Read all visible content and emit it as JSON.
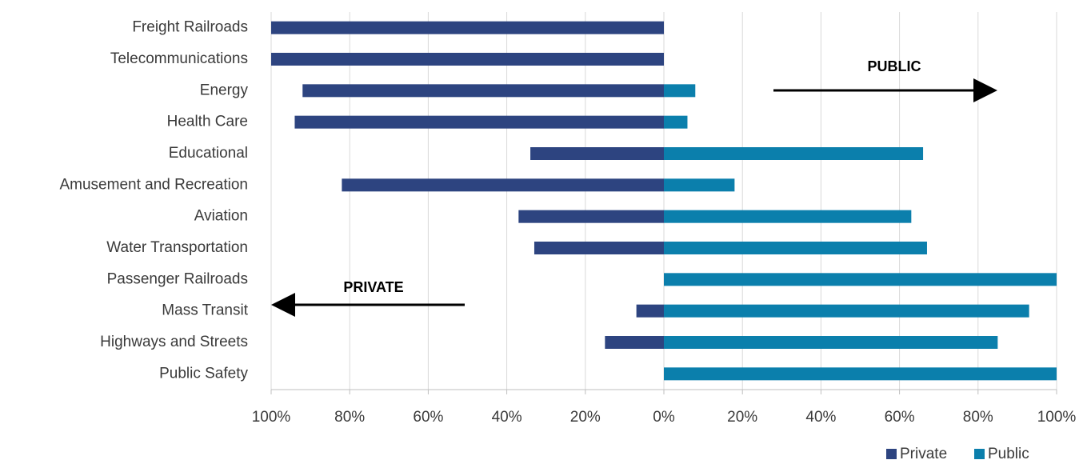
{
  "chart_data": {
    "type": "diverging-bar",
    "categories": [
      "Freight Railroads",
      "Telecommunications",
      "Energy",
      "Health Care",
      "Educational",
      "Amusement and Recreation",
      "Aviation",
      "Water Transportation",
      "Passenger Railroads",
      "Mass Transit",
      "Highways and Streets",
      "Public Safety"
    ],
    "series": [
      {
        "name": "Private",
        "color": "#2d4480",
        "values": [
          -100,
          -100,
          -92,
          -94,
          -34,
          -82,
          -37,
          -33,
          0,
          -7,
          -15,
          0
        ]
      },
      {
        "name": "Public",
        "color": "#0b7fac",
        "values": [
          0,
          0,
          8,
          6,
          66,
          18,
          63,
          67,
          100,
          93,
          85,
          100
        ]
      }
    ],
    "xlim": [
      -100,
      100
    ],
    "xticks": [
      {
        "value": -100,
        "label": "100%"
      },
      {
        "value": -80,
        "label": "80%"
      },
      {
        "value": -60,
        "label": "60%"
      },
      {
        "value": -40,
        "label": "40%"
      },
      {
        "value": -20,
        "label": "20%"
      },
      {
        "value": 0,
        "label": "0%"
      },
      {
        "value": 20,
        "label": "20%"
      },
      {
        "value": 40,
        "label": "40%"
      },
      {
        "value": 60,
        "label": "60%"
      },
      {
        "value": 80,
        "label": "80%"
      },
      {
        "value": 100,
        "label": "100%"
      }
    ],
    "grid": true,
    "annotations": [
      "PUBLIC",
      "PRIVATE"
    ]
  }
}
